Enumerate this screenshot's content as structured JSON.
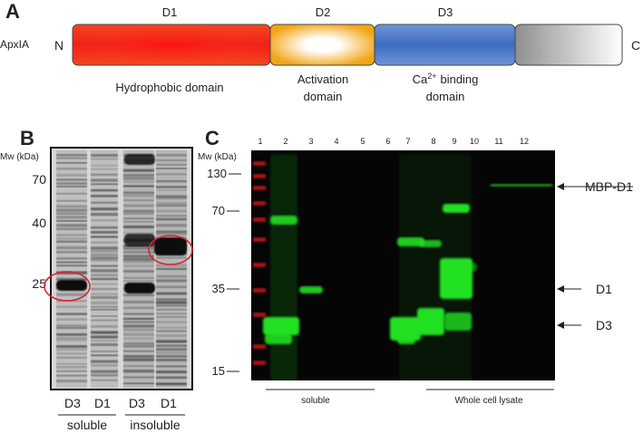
{
  "panel_a": {
    "label": "A",
    "protein": "ApxIA",
    "n_term": "N",
    "c_term": "C",
    "domains": [
      {
        "name": "D1",
        "description": "Hydrophobic domain"
      },
      {
        "name": "D2",
        "description_line1": "Activation",
        "description_line2": "domain"
      },
      {
        "name": "D3",
        "description_prefix": "Ca",
        "description_superscript": "2+",
        "description_suffix": "binding",
        "description_line2": "domain"
      }
    ]
  },
  "panel_b": {
    "label": "B",
    "mw_title": "Mw (kDa)",
    "mw_markers": [
      "70",
      "40",
      "25"
    ],
    "lanes": [
      "D3",
      "D1",
      "D3",
      "D1"
    ],
    "groups": [
      "soluble",
      "insoluble"
    ]
  },
  "panel_c": {
    "label": "C",
    "mw_title": "Mw (kDa)",
    "lane_numbers": [
      "1",
      "2",
      "3",
      "4",
      "5",
      "6",
      "7",
      "8",
      "9",
      "10",
      "11",
      "12"
    ],
    "mw_markers": [
      "130",
      "70",
      "35",
      "15"
    ],
    "arrows": [
      "MBP-D1",
      "D1",
      "D3"
    ],
    "groups": [
      "soluble",
      "Whole cell lysate"
    ]
  }
}
